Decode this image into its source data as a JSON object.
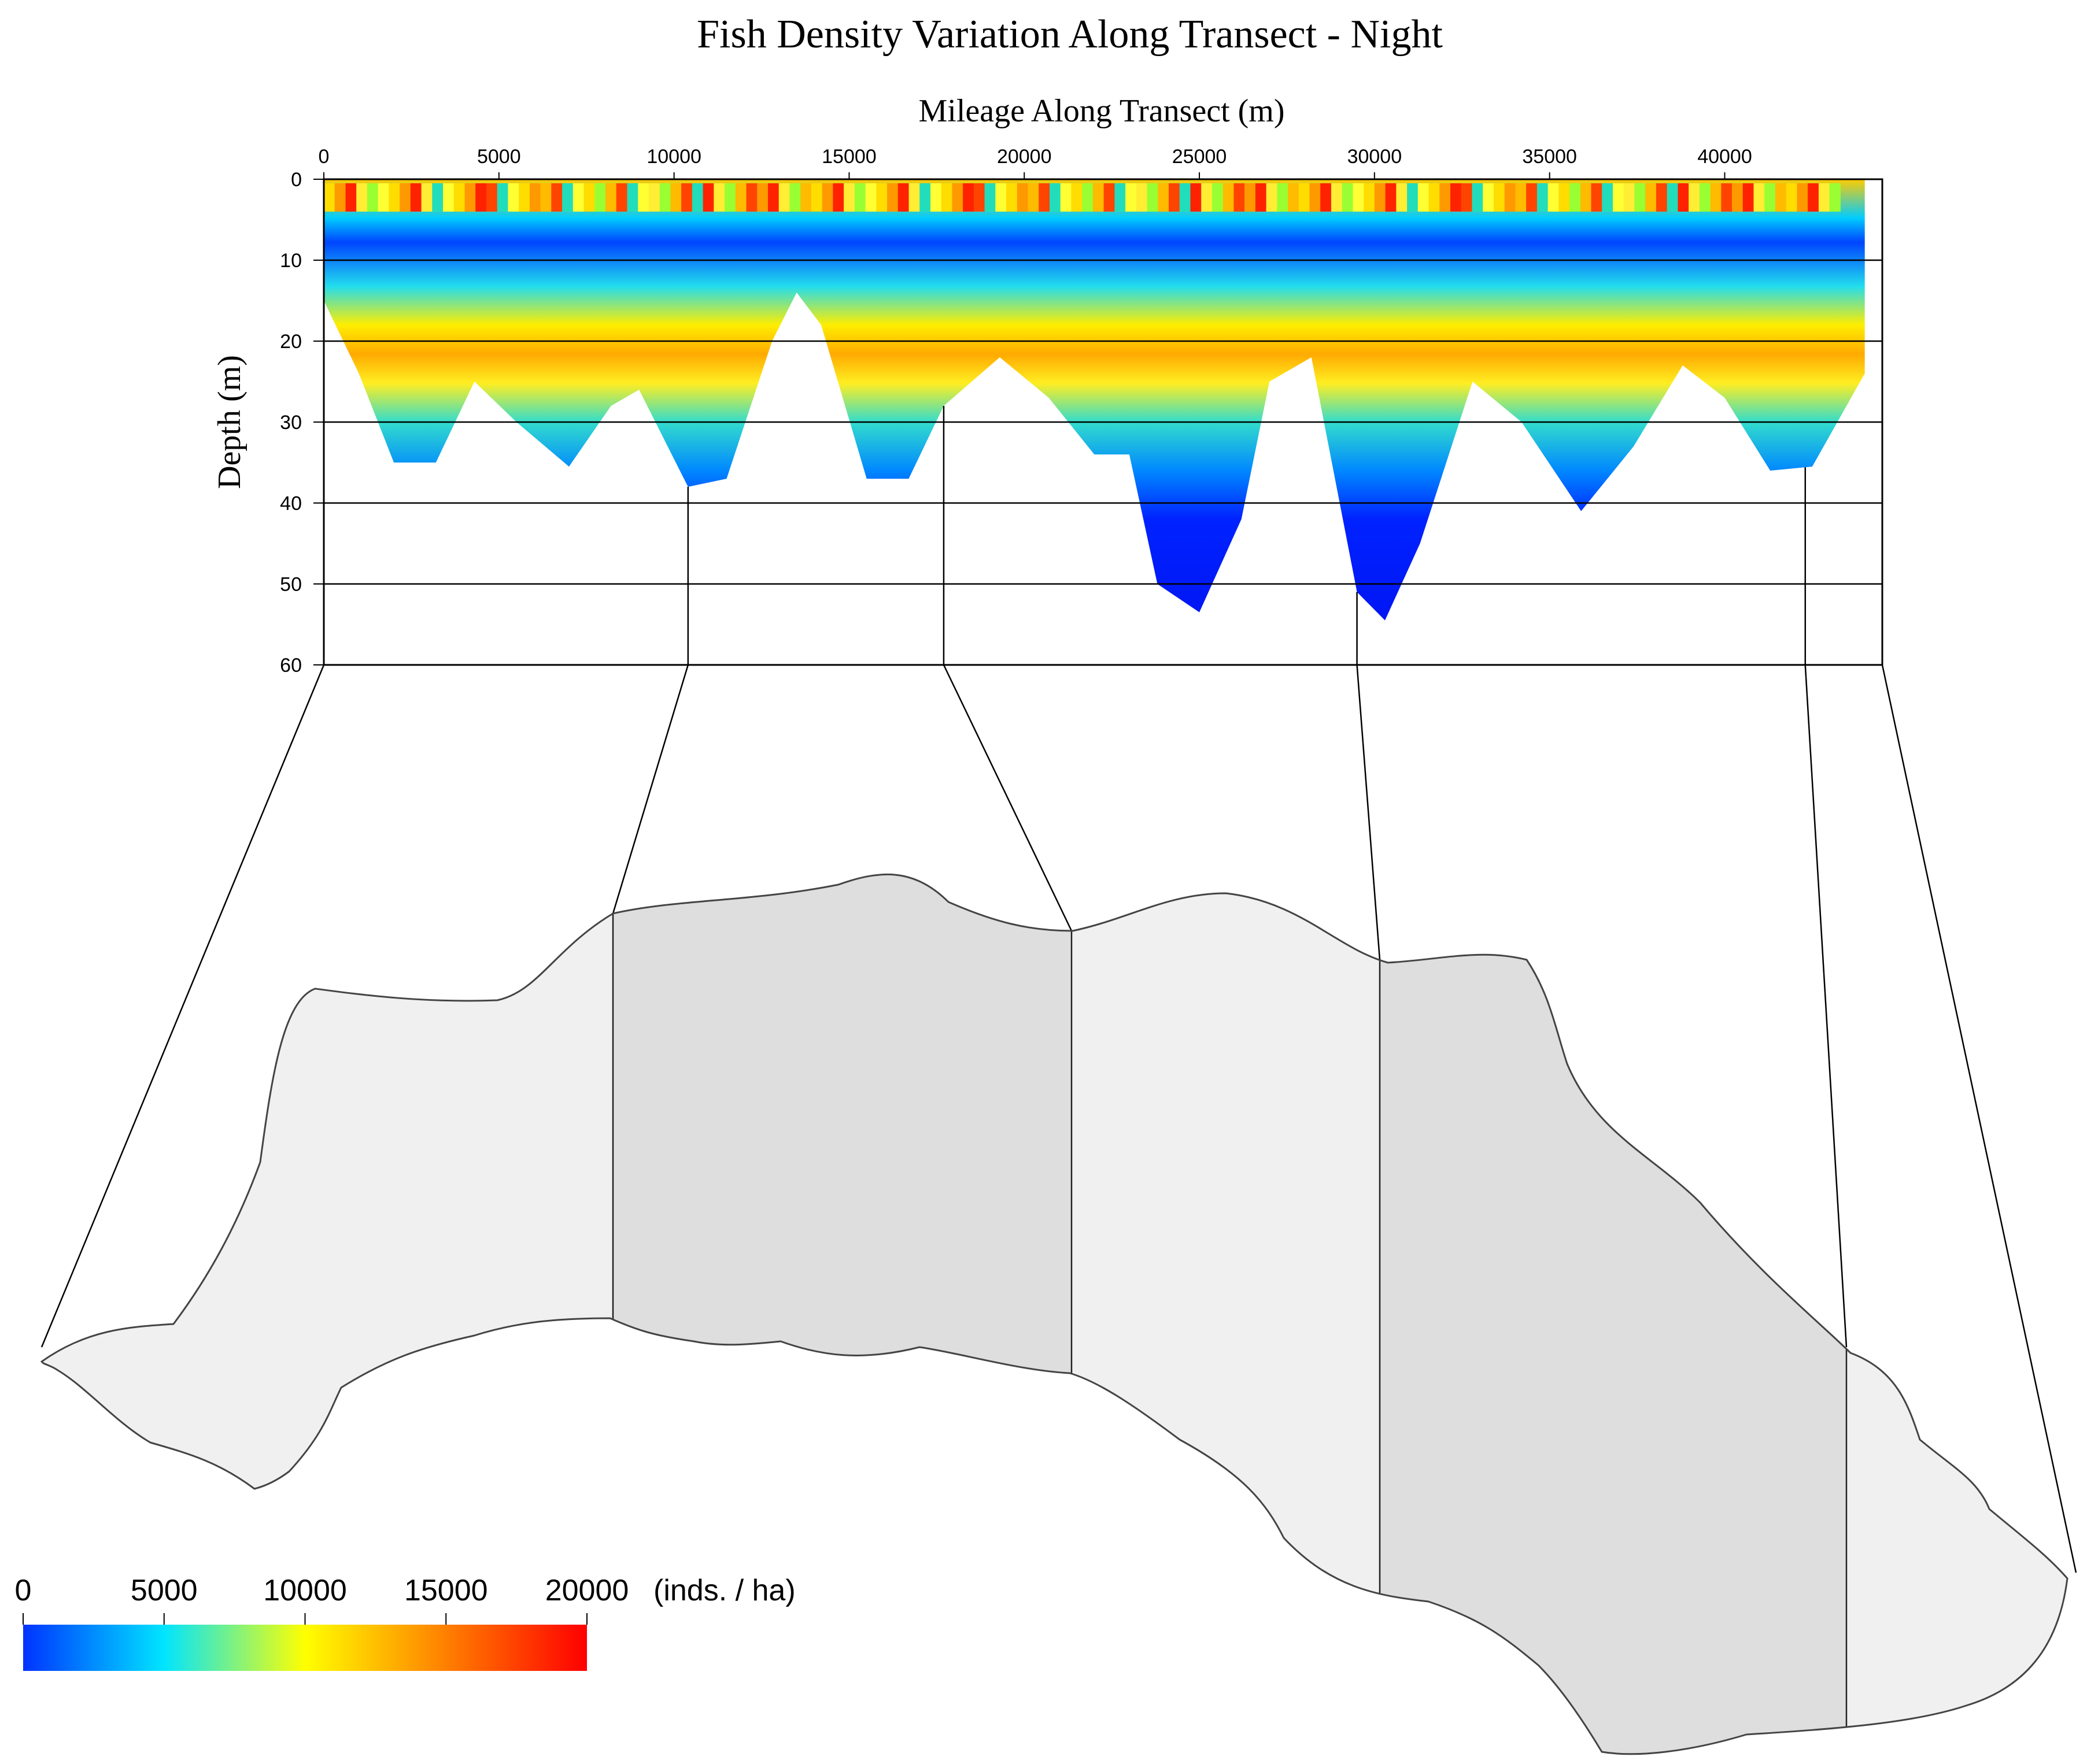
{
  "chart_data": {
    "type": "heatmap",
    "title": "Fish Density Variation Along Transect - Night",
    "xlabel": "Mileage Along Transect (m)",
    "ylabel": "Depth (m)",
    "x_ticks": [
      "0",
      "5000",
      "10000",
      "15000",
      "20000",
      "25000",
      "30000",
      "35000",
      "40000"
    ],
    "y_ticks": [
      "0",
      "10",
      "20",
      "30",
      "40",
      "50",
      "60"
    ],
    "xlim": [
      0,
      44500
    ],
    "ylim": [
      0,
      60
    ],
    "grid": true,
    "colorbar": {
      "ticks": [
        "0",
        "5000",
        "10000",
        "15000",
        "20000"
      ],
      "unit": "(inds. / ha)",
      "range": [
        0,
        20000
      ],
      "colors": [
        "#0033ff",
        "#00e5ff",
        "#ffff00",
        "#ff0000"
      ]
    },
    "bottom_depth_profile": [
      {
        "x": 0,
        "depth": 15
      },
      {
        "x": 1000,
        "depth": 24
      },
      {
        "x": 2000,
        "depth": 35
      },
      {
        "x": 3200,
        "depth": 35
      },
      {
        "x": 4300,
        "depth": 25
      },
      {
        "x": 5500,
        "depth": 30
      },
      {
        "x": 7000,
        "depth": 35.5
      },
      {
        "x": 8200,
        "depth": 28
      },
      {
        "x": 9000,
        "depth": 26
      },
      {
        "x": 10400,
        "depth": 38
      },
      {
        "x": 11500,
        "depth": 37
      },
      {
        "x": 12800,
        "depth": 20
      },
      {
        "x": 13500,
        "depth": 14
      },
      {
        "x": 14200,
        "depth": 18
      },
      {
        "x": 15500,
        "depth": 37
      },
      {
        "x": 16700,
        "depth": 37
      },
      {
        "x": 17700,
        "depth": 28
      },
      {
        "x": 19300,
        "depth": 22
      },
      {
        "x": 20700,
        "depth": 27
      },
      {
        "x": 22000,
        "depth": 34
      },
      {
        "x": 23000,
        "depth": 34
      },
      {
        "x": 23800,
        "depth": 50
      },
      {
        "x": 25000,
        "depth": 53.5
      },
      {
        "x": 26200,
        "depth": 42
      },
      {
        "x": 27000,
        "depth": 25
      },
      {
        "x": 28200,
        "depth": 22
      },
      {
        "x": 29500,
        "depth": 51
      },
      {
        "x": 30300,
        "depth": 54.5
      },
      {
        "x": 31300,
        "depth": 45
      },
      {
        "x": 32800,
        "depth": 25
      },
      {
        "x": 34200,
        "depth": 30
      },
      {
        "x": 35900,
        "depth": 41
      },
      {
        "x": 37400,
        "depth": 33
      },
      {
        "x": 38800,
        "depth": 23
      },
      {
        "x": 40000,
        "depth": 27
      },
      {
        "x": 41300,
        "depth": 36
      },
      {
        "x": 42500,
        "depth": 35.5
      },
      {
        "x": 44000,
        "depth": 24
      }
    ],
    "segment_boundaries_m": [
      10400,
      17700,
      29500,
      42300
    ]
  }
}
